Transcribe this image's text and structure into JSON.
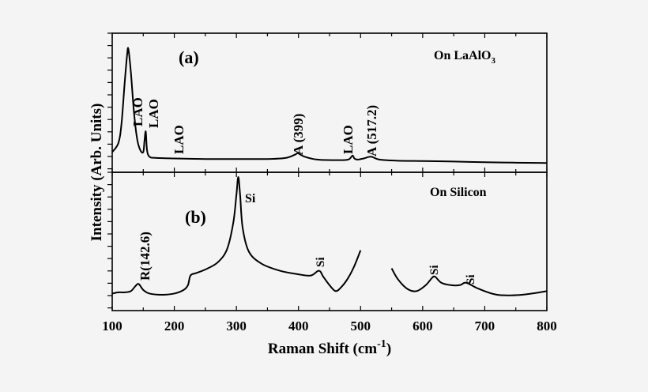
{
  "chart_data": {
    "type": "line",
    "title": "",
    "xlabel": "Raman Shift (cm-1)",
    "xlabel_main": "Raman Shift (cm",
    "xlabel_sup": "-1",
    "xlabel_close": ")",
    "ylabel": "Intensity (Arb. Units)",
    "xlim": [
      100,
      800
    ],
    "x_ticks": [
      "100",
      "200",
      "300",
      "400",
      "500",
      "600",
      "700",
      "800"
    ],
    "grid": false,
    "panels": [
      {
        "id": "a",
        "panel_label": "(a)",
        "series_name": "On LaAlO3",
        "legend_main": "On LaAlO",
        "legend_sub": "3",
        "x": [
          100,
          110,
          115,
          120,
          124,
          126,
          130,
          135,
          140,
          145,
          150,
          152,
          154,
          156,
          160,
          170,
          200,
          250,
          300,
          350,
          380,
          395,
          399,
          410,
          430,
          460,
          480,
          487,
          490,
          495,
          505,
          517,
          530,
          560,
          600,
          650,
          700,
          750,
          800
        ],
        "y": [
          0.1,
          0.18,
          0.35,
          0.7,
          0.95,
          1.0,
          0.8,
          0.45,
          0.22,
          0.12,
          0.1,
          0.2,
          0.28,
          0.12,
          0.06,
          0.05,
          0.045,
          0.04,
          0.04,
          0.04,
          0.05,
          0.08,
          0.09,
          0.06,
          0.035,
          0.03,
          0.035,
          0.07,
          0.045,
          0.035,
          0.045,
          0.06,
          0.035,
          0.025,
          0.022,
          0.018,
          0.012,
          0.008,
          0.005
        ],
        "annotations": [
          {
            "x": 127,
            "text": "LAO"
          },
          {
            "x": 155,
            "text": "LAO"
          },
          {
            "x": 207,
            "text": "LAO"
          },
          {
            "x": 399,
            "text": "A (399)"
          },
          {
            "x": 488,
            "text": "LAO"
          },
          {
            "x": 517.2,
            "text": "A (517.2)"
          }
        ]
      },
      {
        "id": "b",
        "panel_label": "(b)",
        "series_name": "On Silicon",
        "segments": [
          {
            "x": [
              100,
              110,
              120,
              130,
              137,
              142.6,
              150,
              160,
              180,
              200,
              215,
              222,
              226,
              235,
              250,
              270,
              285,
              295,
              300,
              303,
              306,
              310,
              320,
              340,
              370,
              400,
              420,
              433,
              440,
              450,
              460,
              470,
              480,
              490,
              500
            ],
            "y": [
              0.03,
              0.04,
              0.04,
              0.05,
              0.09,
              0.11,
              0.06,
              0.03,
              0.02,
              0.03,
              0.06,
              0.1,
              0.18,
              0.2,
              0.23,
              0.29,
              0.4,
              0.62,
              0.85,
              1.0,
              0.85,
              0.58,
              0.38,
              0.28,
              0.22,
              0.19,
              0.18,
              0.22,
              0.17,
              0.1,
              0.05,
              0.09,
              0.16,
              0.26,
              0.39
            ]
          },
          {
            "x": [
              550,
              560,
              575,
              590,
              605,
              615,
              620,
              630,
              645,
              660,
              670,
              690,
              720,
              760,
              800
            ],
            "y": [
              0.24,
              0.15,
              0.07,
              0.05,
              0.1,
              0.16,
              0.17,
              0.12,
              0.1,
              0.1,
              0.12,
              0.07,
              0.02,
              0.02,
              0.05
            ]
          }
        ],
        "annotations": [
          {
            "x": 142.6,
            "text": "R(142.6)"
          },
          {
            "x": 303,
            "text": "Si"
          },
          {
            "x": 433,
            "text": "Si"
          },
          {
            "x": 620,
            "text": "Si"
          },
          {
            "x": 670,
            "text": "Si"
          }
        ]
      }
    ]
  }
}
